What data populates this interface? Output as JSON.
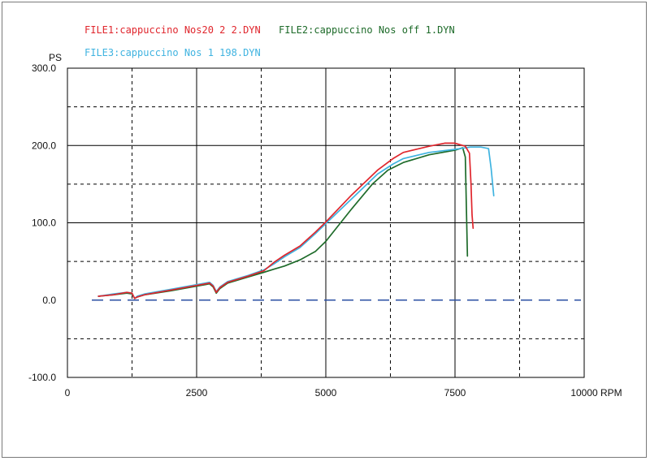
{
  "chart_data": {
    "type": "line",
    "title": "",
    "ylabel": "PS",
    "xlabel": "RPM",
    "xlim": [
      0,
      10000
    ],
    "ylim": [
      -100,
      300
    ],
    "x_ticks": [
      0,
      2500,
      5000,
      7500,
      10000
    ],
    "x_tick_labels": [
      "0",
      "2500",
      "5000",
      "7500",
      "10000"
    ],
    "y_ticks": [
      -100,
      0,
      100,
      200,
      300
    ],
    "y_tick_labels": [
      "-100.0",
      "0.0",
      "100.0",
      "200.0",
      "300.0"
    ],
    "grid": true,
    "legend_position": "top",
    "baseline": {
      "y": 0,
      "color": "#2b4fa3",
      "style": "dashed"
    },
    "series": [
      {
        "name": "FILE1:cappuccino Nos20 2 2.DYN",
        "color": "#e0262d",
        "points": [
          [
            600,
            5
          ],
          [
            900,
            7
          ],
          [
            1150,
            10
          ],
          [
            1250,
            9
          ],
          [
            1300,
            2
          ],
          [
            1350,
            4
          ],
          [
            1500,
            7
          ],
          [
            2000,
            13
          ],
          [
            2500,
            19
          ],
          [
            2750,
            22
          ],
          [
            2820,
            18
          ],
          [
            2880,
            10
          ],
          [
            2950,
            16
          ],
          [
            3100,
            23
          ],
          [
            3500,
            31
          ],
          [
            3800,
            38
          ],
          [
            4000,
            49
          ],
          [
            4200,
            58
          ],
          [
            4500,
            70
          ],
          [
            4800,
            88
          ],
          [
            5000,
            101
          ],
          [
            5500,
            136
          ],
          [
            6000,
            168
          ],
          [
            6300,
            183
          ],
          [
            6500,
            191
          ],
          [
            7000,
            199
          ],
          [
            7300,
            203
          ],
          [
            7500,
            203
          ],
          [
            7700,
            199
          ],
          [
            7780,
            190
          ],
          [
            7810,
            150
          ],
          [
            7830,
            110
          ],
          [
            7850,
            93
          ]
        ]
      },
      {
        "name": "FILE2:cappuccino Nos off 1.DYN",
        "color": "#1e6b2a",
        "points": [
          [
            600,
            5
          ],
          [
            900,
            7
          ],
          [
            1150,
            9
          ],
          [
            1250,
            8
          ],
          [
            1300,
            2
          ],
          [
            1350,
            4
          ],
          [
            1500,
            7
          ],
          [
            2000,
            12
          ],
          [
            2500,
            18
          ],
          [
            2750,
            21
          ],
          [
            2820,
            17
          ],
          [
            2880,
            9
          ],
          [
            2950,
            15
          ],
          [
            3100,
            22
          ],
          [
            3500,
            30
          ],
          [
            3800,
            36
          ],
          [
            4000,
            40
          ],
          [
            4200,
            44
          ],
          [
            4500,
            52
          ],
          [
            4800,
            63
          ],
          [
            5000,
            76
          ],
          [
            5500,
            118
          ],
          [
            5900,
            150
          ],
          [
            6200,
            168
          ],
          [
            6500,
            178
          ],
          [
            7000,
            188
          ],
          [
            7500,
            194
          ],
          [
            7650,
            197
          ],
          [
            7700,
            185
          ],
          [
            7720,
            120
          ],
          [
            7740,
            57
          ]
        ]
      },
      {
        "name": "FILE3:cappuccino Nos 1 198.DYN",
        "color": "#3fb3e0",
        "points": [
          [
            600,
            5
          ],
          [
            900,
            8
          ],
          [
            1150,
            10
          ],
          [
            1250,
            9
          ],
          [
            1300,
            2
          ],
          [
            1350,
            5
          ],
          [
            1500,
            8
          ],
          [
            2000,
            14
          ],
          [
            2500,
            20
          ],
          [
            2750,
            23
          ],
          [
            2820,
            19
          ],
          [
            2880,
            11
          ],
          [
            2950,
            17
          ],
          [
            3100,
            24
          ],
          [
            3500,
            32
          ],
          [
            3800,
            39
          ],
          [
            4000,
            47
          ],
          [
            4200,
            56
          ],
          [
            4500,
            68
          ],
          [
            4800,
            86
          ],
          [
            5000,
            99
          ],
          [
            5500,
            131
          ],
          [
            6000,
            163
          ],
          [
            6300,
            176
          ],
          [
            6500,
            183
          ],
          [
            7000,
            191
          ],
          [
            7500,
            195
          ],
          [
            7800,
            198
          ],
          [
            8000,
            198
          ],
          [
            8150,
            196
          ],
          [
            8200,
            170
          ],
          [
            8250,
            135
          ]
        ]
      }
    ]
  }
}
